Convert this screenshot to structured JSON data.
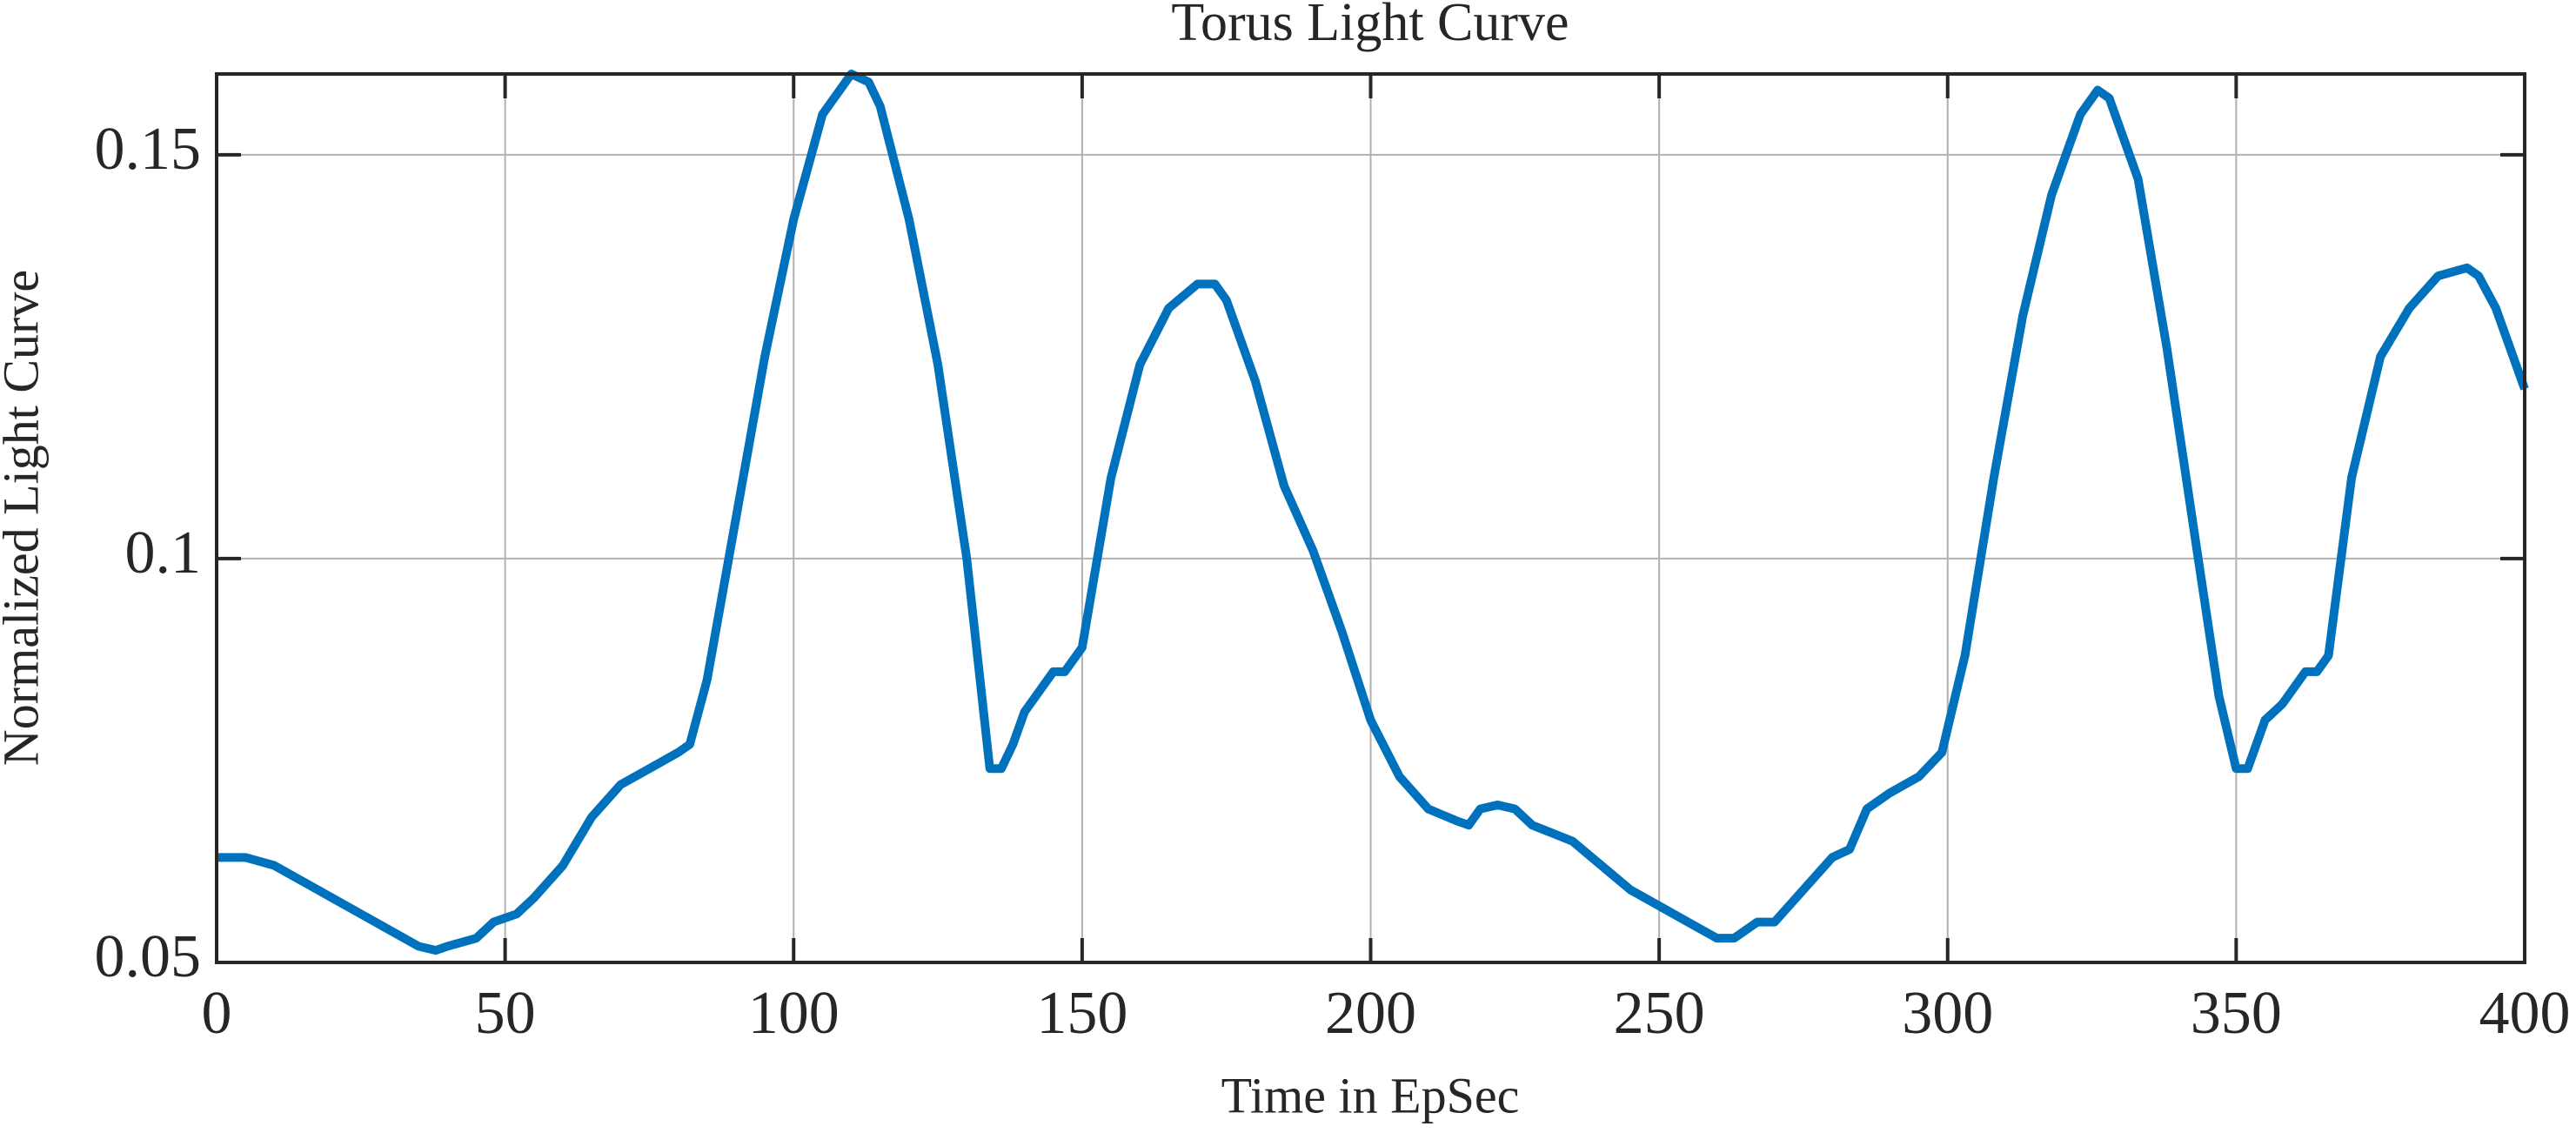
{
  "chart_data": {
    "type": "line",
    "title": "Torus Light Curve",
    "xlabel": "Time in EpSec",
    "ylabel": "Normalized Light Curve",
    "x": [
      0,
      5,
      10,
      15,
      20,
      25,
      30,
      35,
      38,
      40,
      45,
      48,
      52,
      55,
      60,
      65,
      70,
      75,
      80,
      82,
      85,
      90,
      95,
      100,
      105,
      110,
      113,
      115,
      120,
      125,
      130,
      134,
      136,
      138,
      140,
      145,
      147,
      150,
      155,
      160,
      165,
      170,
      173,
      175,
      180,
      185,
      190,
      195,
      200,
      205,
      210,
      215,
      217,
      219,
      222,
      225,
      228,
      235,
      240,
      245,
      250,
      255,
      260,
      263,
      267,
      270,
      275,
      280,
      283,
      286,
      290,
      295,
      299,
      303,
      308,
      313,
      318,
      323,
      326,
      328,
      333,
      338,
      343,
      347,
      350,
      352,
      355,
      358,
      362,
      364,
      366,
      370,
      375,
      380,
      385,
      390,
      392,
      395,
      400
    ],
    "series": [
      {
        "name": "Normalized Light Curve",
        "color": "#0072bd",
        "values": [
          0.063,
          0.063,
          0.062,
          0.06,
          0.058,
          0.056,
          0.054,
          0.052,
          0.0515,
          0.052,
          0.053,
          0.055,
          0.056,
          0.058,
          0.062,
          0.068,
          0.072,
          0.074,
          0.076,
          0.077,
          0.085,
          0.105,
          0.125,
          0.142,
          0.155,
          0.16,
          0.159,
          0.156,
          0.142,
          0.124,
          0.1,
          0.074,
          0.074,
          0.077,
          0.081,
          0.086,
          0.086,
          0.089,
          0.11,
          0.124,
          0.131,
          0.134,
          0.134,
          0.132,
          0.122,
          0.109,
          0.101,
          0.091,
          0.08,
          0.073,
          0.069,
          0.0675,
          0.067,
          0.069,
          0.0695,
          0.069,
          0.067,
          0.065,
          0.062,
          0.059,
          0.057,
          0.055,
          0.053,
          0.053,
          0.055,
          0.055,
          0.059,
          0.063,
          0.064,
          0.069,
          0.071,
          0.073,
          0.076,
          0.088,
          0.11,
          0.13,
          0.145,
          0.155,
          0.158,
          0.157,
          0.147,
          0.126,
          0.102,
          0.083,
          0.074,
          0.074,
          0.08,
          0.082,
          0.086,
          0.086,
          0.088,
          0.11,
          0.125,
          0.131,
          0.135,
          0.136,
          0.135,
          0.131,
          0.121
        ]
      }
    ],
    "xlim": [
      0,
      400
    ],
    "xticks": [
      0,
      50,
      100,
      150,
      200,
      250,
      300,
      350,
      400
    ],
    "ylim": [
      0.05,
      0.16
    ],
    "yticks": [
      0.05,
      0.1,
      0.15
    ],
    "grid": true
  }
}
